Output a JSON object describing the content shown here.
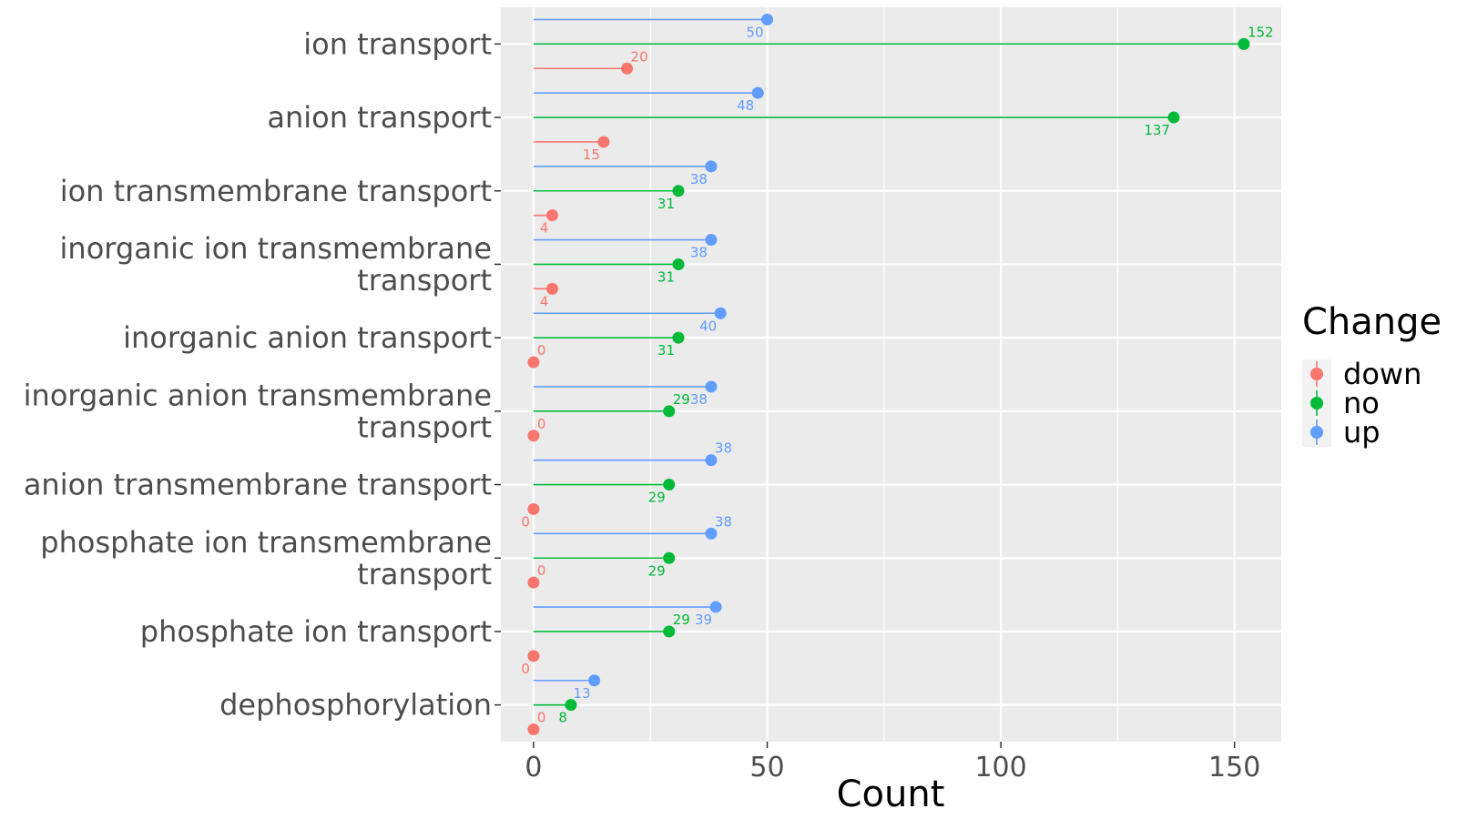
{
  "chart_data": {
    "type": "lollipop",
    "xlabel": "Count",
    "ylabel": "",
    "xlim": [
      -7,
      160
    ],
    "x_ticks": [
      0,
      50,
      100,
      150
    ],
    "x_tick_labels": [
      "0",
      "50",
      "100",
      "150"
    ],
    "grid": true,
    "legend_position": "right",
    "legend": {
      "title": "Change",
      "entries": [
        "down",
        "no",
        "up"
      ]
    },
    "colors": {
      "down": "#F8766D",
      "no": "#00BA38",
      "up": "#619CFF",
      "panel": "#EBEBEB",
      "grid": "#FFFFFF"
    },
    "categories": [
      [
        "ion transport"
      ],
      [
        "anion transport"
      ],
      [
        "ion transmembrane transport"
      ],
      [
        "inorganic ion transmembrane",
        "transport"
      ],
      [
        "inorganic anion transport"
      ],
      [
        "inorganic anion transmembrane",
        "transport"
      ],
      [
        "anion transmembrane transport"
      ],
      [
        "phosphate ion transmembrane",
        "transport"
      ],
      [
        "phosphate ion transport"
      ],
      [
        "dephosphorylation"
      ]
    ],
    "series": [
      {
        "name": "down",
        "values": [
          20,
          15,
          4,
          4,
          0,
          0,
          0,
          0,
          0,
          0
        ]
      },
      {
        "name": "no",
        "values": [
          152,
          137,
          31,
          31,
          31,
          29,
          29,
          29,
          29,
          8
        ]
      },
      {
        "name": "up",
        "values": [
          50,
          48,
          38,
          38,
          40,
          38,
          38,
          38,
          39,
          13
        ]
      }
    ],
    "label_positions": {
      "down": [
        "above",
        "below",
        "below",
        "below",
        "above",
        "above",
        "below",
        "above",
        "below",
        "above"
      ],
      "no": [
        "above",
        "below",
        "below",
        "below",
        "below",
        "above",
        "below",
        "below",
        "above",
        "below"
      ],
      "up": [
        "below",
        "below",
        "below",
        "below",
        "below",
        "below",
        "above",
        "above",
        "below",
        "below"
      ]
    }
  }
}
